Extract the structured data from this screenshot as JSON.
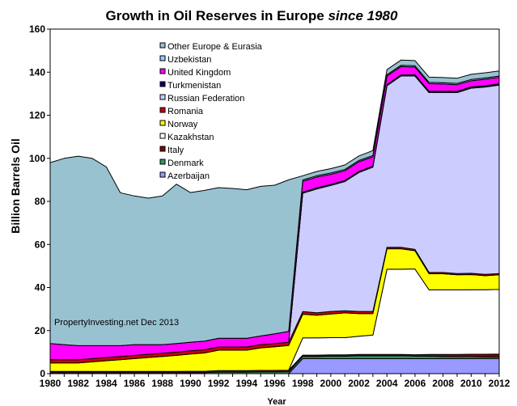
{
  "chart_data": {
    "type": "area",
    "stacked": true,
    "title": "Growth in Oil Reserves in Europe",
    "title_italic": "since 1980",
    "xlabel": "Year",
    "ylabel": "Billion Barrels Oil",
    "xlim": [
      1980,
      2012
    ],
    "ylim": [
      0,
      160
    ],
    "yticks": [
      0,
      20,
      40,
      60,
      80,
      100,
      120,
      140,
      160
    ],
    "xticks": [
      1980,
      1982,
      1984,
      1986,
      1988,
      1990,
      1992,
      1994,
      1996,
      1998,
      2000,
      2002,
      2004,
      2006,
      2008,
      2010,
      2012
    ],
    "grid": false,
    "legend_position": "top-center",
    "annotation": "PropertyInvesting.net  Dec 2013",
    "x": [
      1980,
      1981,
      1982,
      1983,
      1984,
      1985,
      1986,
      1987,
      1988,
      1989,
      1990,
      1991,
      1992,
      1993,
      1994,
      1995,
      1996,
      1997,
      1998,
      1999,
      2000,
      2001,
      2002,
      2003,
      2004,
      2005,
      2006,
      2007,
      2008,
      2009,
      2010,
      2011,
      2012
    ],
    "series": [
      {
        "name": "Azerbaijan",
        "color": "#9999ff",
        "values": [
          0,
          0,
          0,
          0,
          0,
          0,
          0,
          0,
          0,
          0,
          0,
          0,
          0,
          0,
          0,
          0,
          0,
          0,
          7,
          7,
          7,
          7,
          7,
          7,
          7,
          7,
          7,
          7,
          7,
          7,
          7,
          7,
          7
        ]
      },
      {
        "name": "Denmark",
        "color": "#339966",
        "values": [
          0.5,
          0.5,
          0.5,
          0.5,
          0.5,
          0.5,
          0.5,
          0.5,
          0.5,
          0.5,
          0.5,
          0.5,
          0.7,
          0.7,
          0.7,
          0.8,
          0.8,
          0.9,
          1.0,
          1.0,
          1.1,
          1.1,
          1.3,
          1.3,
          1.3,
          1.3,
          1.2,
          1.1,
          1.0,
          0.9,
          0.9,
          0.8,
          0.7
        ]
      },
      {
        "name": "Italy",
        "color": "#800000",
        "values": [
          0.5,
          0.5,
          0.5,
          0.5,
          0.5,
          0.5,
          0.5,
          0.5,
          0.5,
          0.5,
          0.6,
          0.6,
          0.7,
          0.7,
          0.7,
          0.7,
          0.7,
          0.7,
          0.6,
          0.6,
          0.6,
          0.6,
          0.6,
          0.6,
          0.6,
          0.6,
          0.6,
          0.8,
          0.9,
          1.0,
          1.1,
          1.2,
          1.4
        ]
      },
      {
        "name": "Kazakhstan",
        "color": "#ffffff",
        "values": [
          0,
          0,
          0,
          0,
          0,
          0,
          0,
          0,
          0,
          0,
          0,
          0,
          0,
          0,
          0,
          0,
          0,
          0,
          8.0,
          8.0,
          8.0,
          8.0,
          8.5,
          9.0,
          39.6,
          39.6,
          39.8,
          30.0,
          30.0,
          30.0,
          30.0,
          30.0,
          30.0
        ]
      },
      {
        "name": "Norway",
        "color": "#ffff00",
        "values": [
          4.0,
          4.0,
          4.0,
          4.5,
          5.0,
          5.5,
          6.0,
          6.5,
          7.0,
          7.5,
          8.0,
          8.5,
          9.5,
          9.5,
          9.5,
          10.5,
          11.0,
          11.5,
          11.0,
          10.5,
          11.0,
          11.5,
          10.5,
          10.0,
          9.5,
          9.5,
          8.5,
          7.5,
          7.5,
          7.0,
          7.0,
          6.5,
          6.8
        ]
      },
      {
        "name": "Romania",
        "color": "#cc0000",
        "values": [
          1.5,
          1.5,
          1.5,
          1.5,
          1.5,
          1.5,
          1.5,
          1.5,
          1.5,
          1.5,
          1.5,
          1.5,
          1.5,
          1.5,
          1.5,
          1.5,
          1.5,
          1.5,
          1.2,
          1.2,
          1.2,
          1.0,
          1.0,
          1.0,
          0.7,
          0.7,
          0.6,
          0.6,
          0.6,
          0.6,
          0.6,
          0.6,
          0.6
        ]
      },
      {
        "name": "Russian Federation",
        "color": "#ccccff",
        "values": [
          0,
          0,
          0,
          0,
          0,
          0,
          0,
          0,
          0,
          0,
          0,
          0,
          0,
          0,
          0,
          0,
          0,
          0,
          55.0,
          57.5,
          58.5,
          60.0,
          64.5,
          67.0,
          75.0,
          79.5,
          80.5,
          83.5,
          83.5,
          84.0,
          86.0,
          87.0,
          87.5
        ]
      },
      {
        "name": "Turkmenistan",
        "color": "#000066",
        "values": [
          0,
          0,
          0,
          0,
          0,
          0,
          0,
          0,
          0,
          0,
          0,
          0,
          0,
          0,
          0,
          0,
          0,
          0,
          0.5,
          0.5,
          0.5,
          0.5,
          0.5,
          0.5,
          0.5,
          0.5,
          0.6,
          0.6,
          0.6,
          0.6,
          0.6,
          0.6,
          0.6
        ]
      },
      {
        "name": "United Kingdom",
        "color": "#ff00ff",
        "values": [
          7.5,
          7.0,
          6.5,
          6.0,
          5.5,
          5.0,
          5.0,
          4.5,
          4.0,
          4.0,
          4.0,
          4.0,
          4.0,
          4.0,
          4.0,
          4.0,
          4.5,
          5.0,
          5.0,
          5.0,
          4.7,
          4.5,
          4.5,
          4.3,
          4.0,
          3.9,
          3.6,
          3.6,
          3.4,
          3.1,
          2.8,
          3.0,
          3.0
        ]
      },
      {
        "name": "Uzbekistan",
        "color": "#99ccff",
        "values": [
          0,
          0,
          0,
          0,
          0,
          0,
          0,
          0,
          0,
          0,
          0,
          0,
          0,
          0,
          0,
          0,
          0,
          0,
          0.6,
          0.6,
          0.6,
          0.6,
          0.6,
          0.6,
          0.6,
          0.6,
          0.6,
          0.6,
          0.6,
          0.6,
          0.6,
          0.6,
          0.6
        ]
      },
      {
        "name": "Other Europe & Eurasia",
        "color": "#99c2d1",
        "values": [
          84.0,
          86.5,
          88.0,
          87.0,
          83.0,
          71.0,
          69.0,
          68.0,
          69.0,
          74.0,
          69.5,
          70.0,
          70.0,
          69.6,
          69.0,
          69.5,
          69.0,
          70.4,
          2.0,
          2.0,
          2.0,
          2.1,
          2.1,
          2.3,
          2.4,
          2.4,
          2.4,
          2.4,
          2.4,
          2.4,
          2.4,
          2.4,
          2.4
        ]
      }
    ]
  }
}
